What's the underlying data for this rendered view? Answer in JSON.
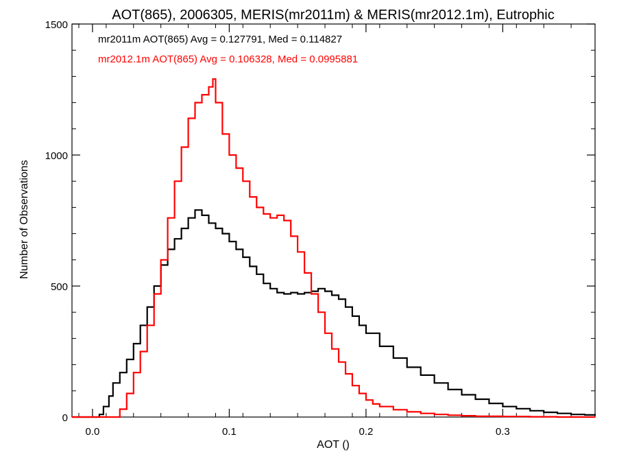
{
  "chart_data": {
    "type": "line",
    "title": "AOT(865), 2006305, MERIS(mr2011m) & MERIS(mr2012.1m), Eutrophic",
    "xlabel": "AOT ()",
    "ylabel": "Number of Observations",
    "xlim": [
      -0.015,
      0.3675
    ],
    "ylim": [
      0,
      1500
    ],
    "xticks": [
      0.0,
      0.1,
      0.2,
      0.3
    ],
    "xtick_labels": [
      "0.0",
      "0.1",
      "0.2",
      "0.3"
    ],
    "yticks": [
      0,
      500,
      1000,
      1500
    ],
    "ytick_labels": [
      "0",
      "500",
      "1000",
      "1500"
    ],
    "grid": false,
    "legend_position": "top-left",
    "series": [
      {
        "name": "mr2011m AOT(865) Avg = 0.127791, Med = 0.114827",
        "color": "#000000",
        "x": [
          -0.015,
          0.0,
          0.005,
          0.008,
          0.012,
          0.015,
          0.02,
          0.025,
          0.03,
          0.035,
          0.04,
          0.045,
          0.05,
          0.055,
          0.06,
          0.065,
          0.07,
          0.075,
          0.08,
          0.085,
          0.09,
          0.095,
          0.1,
          0.105,
          0.11,
          0.115,
          0.12,
          0.125,
          0.13,
          0.135,
          0.14,
          0.145,
          0.15,
          0.155,
          0.16,
          0.165,
          0.17,
          0.175,
          0.18,
          0.185,
          0.19,
          0.195,
          0.2,
          0.21,
          0.22,
          0.23,
          0.24,
          0.25,
          0.26,
          0.27,
          0.28,
          0.29,
          0.3,
          0.31,
          0.32,
          0.33,
          0.34,
          0.35,
          0.36,
          0.3675
        ],
        "y": [
          0,
          0,
          10,
          40,
          80,
          130,
          170,
          220,
          280,
          350,
          420,
          500,
          580,
          640,
          680,
          720,
          760,
          790,
          770,
          740,
          720,
          700,
          670,
          640,
          610,
          575,
          545,
          510,
          490,
          475,
          470,
          475,
          470,
          475,
          480,
          490,
          480,
          465,
          450,
          420,
          385,
          350,
          320,
          270,
          225,
          190,
          160,
          130,
          105,
          85,
          68,
          52,
          40,
          32,
          24,
          18,
          14,
          10,
          8,
          6
        ]
      },
      {
        "name": "mr2012.1m AOT(865) Avg = 0.106328, Med = 0.0995881",
        "color": "#ff0000",
        "x": [
          -0.015,
          0.015,
          0.02,
          0.025,
          0.03,
          0.035,
          0.04,
          0.045,
          0.05,
          0.055,
          0.06,
          0.065,
          0.07,
          0.075,
          0.08,
          0.085,
          0.088,
          0.09,
          0.095,
          0.1,
          0.105,
          0.11,
          0.115,
          0.12,
          0.125,
          0.13,
          0.135,
          0.14,
          0.145,
          0.15,
          0.155,
          0.16,
          0.165,
          0.17,
          0.175,
          0.18,
          0.185,
          0.19,
          0.195,
          0.2,
          0.205,
          0.21,
          0.22,
          0.23,
          0.24,
          0.25,
          0.26,
          0.27,
          0.28,
          0.3,
          0.32,
          0.34,
          0.3675
        ],
        "y": [
          0,
          0,
          30,
          90,
          170,
          250,
          350,
          470,
          600,
          760,
          900,
          1030,
          1140,
          1200,
          1230,
          1260,
          1290,
          1200,
          1080,
          1000,
          950,
          900,
          840,
          800,
          775,
          760,
          770,
          750,
          690,
          630,
          550,
          470,
          400,
          320,
          260,
          210,
          165,
          120,
          90,
          65,
          50,
          40,
          28,
          20,
          14,
          10,
          7,
          5,
          3,
          2,
          1,
          0,
          0
        ]
      }
    ]
  }
}
